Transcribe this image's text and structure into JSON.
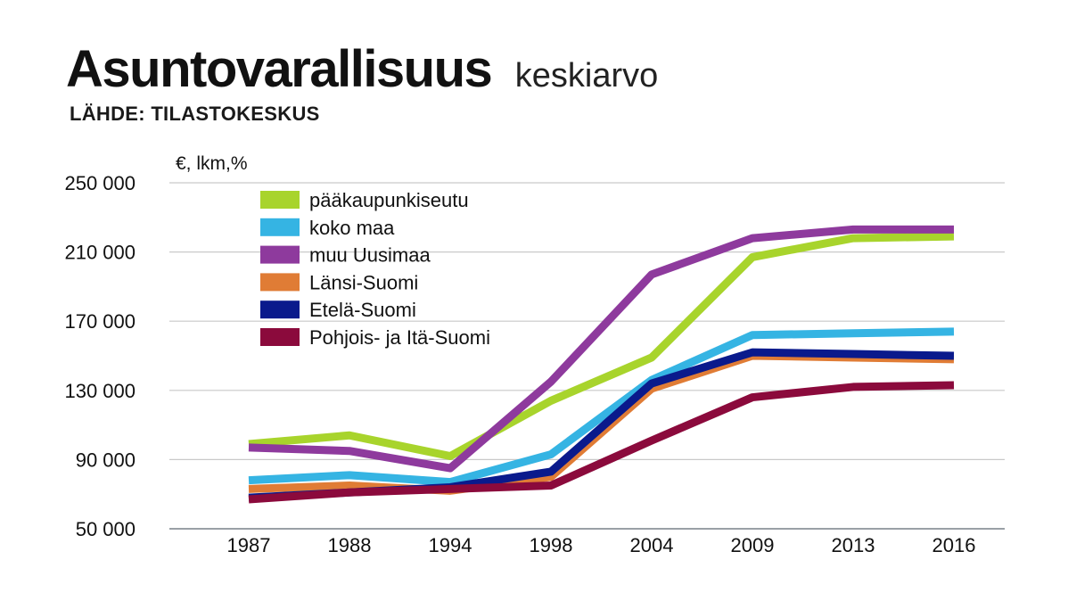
{
  "header": {
    "title": "Asuntovarallisuus",
    "subtitle": "keskiarvo",
    "source": "LÄHDE: TILASTOKESKUS"
  },
  "chart_data": {
    "type": "line",
    "unit_label": "€, lkm,%",
    "categories": [
      "1987",
      "1988",
      "1994",
      "1998",
      "2004",
      "2009",
      "2013",
      "2016"
    ],
    "ylim": [
      50000,
      250000
    ],
    "yticks": [
      50000,
      90000,
      130000,
      170000,
      210000,
      250000
    ],
    "ytick_labels": [
      "50 000",
      "90 000",
      "130 000",
      "170 000",
      "210 000",
      "250 000"
    ],
    "grid": true,
    "legend_position": "top-left",
    "series": [
      {
        "name": "pääkaupunkiseutu",
        "color": "#a8d42c",
        "values": [
          99000,
          104000,
          92000,
          124000,
          149000,
          207000,
          218000,
          219000
        ]
      },
      {
        "name": "koko maa",
        "color": "#35b4e3",
        "values": [
          78000,
          81000,
          77000,
          93000,
          136000,
          162000,
          163000,
          164000
        ]
      },
      {
        "name": "muu Uusimaa",
        "color": "#8e3a9d",
        "values": [
          97000,
          95000,
          85000,
          135000,
          197000,
          218000,
          223000,
          223000
        ]
      },
      {
        "name": "Länsi-Suomi",
        "color": "#e07c35",
        "values": [
          73000,
          75000,
          72000,
          80000,
          131000,
          150000,
          149000,
          148000
        ]
      },
      {
        "name": "Etelä-Suomi",
        "color": "#0a1a8c",
        "values": [
          68000,
          71000,
          74000,
          83000,
          134000,
          152000,
          151000,
          150000
        ]
      },
      {
        "name": "Pohjois- ja Itä-Suomi",
        "color": "#8b0a3c",
        "values": [
          67000,
          71000,
          73000,
          75000,
          101000,
          126000,
          132000,
          133000
        ]
      }
    ]
  }
}
